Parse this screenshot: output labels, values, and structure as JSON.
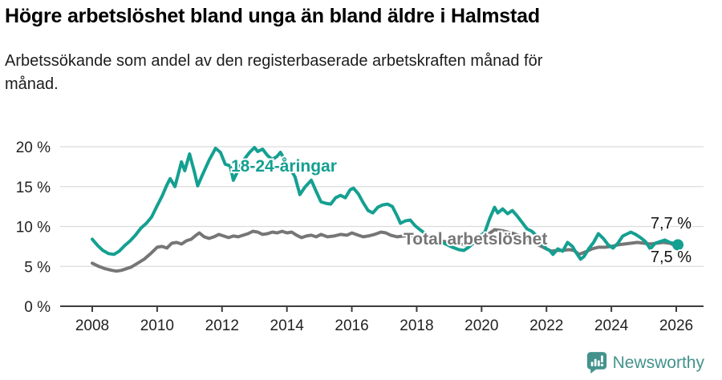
{
  "header": {
    "title": "Högre arbetslöshet bland unga än bland äldre i Halmstad",
    "subtitle": "Arbetssökande som andel av den registerbaserade arbetskraften månad för månad."
  },
  "footer": {
    "brand": "Newsworthy",
    "brand_color": "#43938c",
    "logo_icon": "bar-chart-speech-bubble-icon"
  },
  "chart_data": {
    "type": "line",
    "title": "Högre arbetslöshet bland unga än bland äldre i Halmstad",
    "subtitle": "Arbetssökande som andel av den registerbaserade arbetskraften månad för månad.",
    "unit": "%",
    "grid": true,
    "legend": "inline-labels",
    "x_axis": {
      "ticks": [
        2008,
        2010,
        2012,
        2014,
        2016,
        2018,
        2020,
        2022,
        2024,
        2026
      ],
      "tick_labels": [
        "2008",
        "2010",
        "2012",
        "2014",
        "2016",
        "2018",
        "2020",
        "2022",
        "2024",
        "2026"
      ],
      "range": [
        2007,
        2026.9
      ]
    },
    "y_axis": {
      "ticks": [
        0,
        5,
        10,
        15,
        20
      ],
      "tick_labels": [
        "0 %",
        "5 %",
        "10 %",
        "15 %",
        "20 %"
      ],
      "range": [
        0,
        21
      ]
    },
    "series": [
      {
        "name": "Total arbetslöshet",
        "color": "#767676",
        "end_label": "7,5 %",
        "latest_value": 7.5,
        "points": [
          [
            2008.0,
            5.4
          ],
          [
            2008.2,
            5.0
          ],
          [
            2008.4,
            4.7
          ],
          [
            2008.6,
            4.5
          ],
          [
            2008.75,
            4.4
          ],
          [
            2008.9,
            4.5
          ],
          [
            2009.05,
            4.7
          ],
          [
            2009.2,
            4.9
          ],
          [
            2009.4,
            5.4
          ],
          [
            2009.6,
            5.9
          ],
          [
            2009.8,
            6.6
          ],
          [
            2010.0,
            7.4
          ],
          [
            2010.15,
            7.5
          ],
          [
            2010.3,
            7.3
          ],
          [
            2010.45,
            7.9
          ],
          [
            2010.6,
            8.0
          ],
          [
            2010.75,
            7.8
          ],
          [
            2010.9,
            8.2
          ],
          [
            2011.05,
            8.4
          ],
          [
            2011.2,
            8.9
          ],
          [
            2011.3,
            9.2
          ],
          [
            2011.45,
            8.7
          ],
          [
            2011.6,
            8.5
          ],
          [
            2011.75,
            8.7
          ],
          [
            2011.9,
            9.0
          ],
          [
            2012.05,
            8.8
          ],
          [
            2012.2,
            8.6
          ],
          [
            2012.35,
            8.8
          ],
          [
            2012.5,
            8.7
          ],
          [
            2012.65,
            8.9
          ],
          [
            2012.8,
            9.1
          ],
          [
            2012.95,
            9.4
          ],
          [
            2013.1,
            9.3
          ],
          [
            2013.25,
            9.0
          ],
          [
            2013.4,
            9.1
          ],
          [
            2013.55,
            9.3
          ],
          [
            2013.7,
            9.2
          ],
          [
            2013.85,
            9.4
          ],
          [
            2014.0,
            9.2
          ],
          [
            2014.15,
            9.3
          ],
          [
            2014.3,
            8.9
          ],
          [
            2014.45,
            8.6
          ],
          [
            2014.6,
            8.8
          ],
          [
            2014.75,
            8.9
          ],
          [
            2014.9,
            8.7
          ],
          [
            2015.05,
            9.0
          ],
          [
            2015.25,
            8.7
          ],
          [
            2015.45,
            8.8
          ],
          [
            2015.65,
            9.0
          ],
          [
            2015.85,
            8.9
          ],
          [
            2016.0,
            9.2
          ],
          [
            2016.2,
            8.9
          ],
          [
            2016.35,
            8.7
          ],
          [
            2016.5,
            8.8
          ],
          [
            2016.7,
            9.0
          ],
          [
            2016.9,
            9.3
          ],
          [
            2017.05,
            9.2
          ],
          [
            2017.2,
            8.9
          ],
          [
            2017.4,
            8.7
          ],
          [
            2017.6,
            8.8
          ],
          [
            2017.8,
            8.9
          ],
          [
            2018.0,
            8.6
          ],
          [
            2018.25,
            8.3
          ],
          [
            2018.5,
            8.1
          ],
          [
            2018.75,
            8.2
          ],
          [
            2019.0,
            8.0
          ],
          [
            2019.25,
            7.8
          ],
          [
            2019.5,
            7.7
          ],
          [
            2019.75,
            7.9
          ],
          [
            2020.0,
            8.2
          ],
          [
            2020.2,
            9.0
          ],
          [
            2020.4,
            9.6
          ],
          [
            2020.6,
            9.5
          ],
          [
            2020.8,
            9.3
          ],
          [
            2021.0,
            9.1
          ],
          [
            2021.2,
            8.8
          ],
          [
            2021.4,
            8.4
          ],
          [
            2021.6,
            8.0
          ],
          [
            2021.8,
            7.6
          ],
          [
            2022.0,
            7.2
          ],
          [
            2022.15,
            6.9
          ],
          [
            2022.3,
            7.0
          ],
          [
            2022.5,
            7.0
          ],
          [
            2022.7,
            7.1
          ],
          [
            2022.85,
            7.0
          ],
          [
            2023.0,
            6.5
          ],
          [
            2023.2,
            6.8
          ],
          [
            2023.4,
            7.2
          ],
          [
            2023.6,
            7.4
          ],
          [
            2023.8,
            7.4
          ],
          [
            2024.0,
            7.5
          ],
          [
            2024.2,
            7.7
          ],
          [
            2024.4,
            7.8
          ],
          [
            2024.6,
            7.9
          ],
          [
            2024.8,
            8.0
          ],
          [
            2025.0,
            7.9
          ],
          [
            2025.2,
            7.8
          ],
          [
            2025.4,
            7.9
          ],
          [
            2025.6,
            8.0
          ],
          [
            2025.8,
            7.9
          ],
          [
            2026.05,
            7.5
          ]
        ]
      },
      {
        "name": "18-24-åringar",
        "color": "#14a091",
        "end_label": "7,7 %",
        "latest_value": 7.7,
        "points": [
          [
            2008.0,
            8.4
          ],
          [
            2008.17,
            7.6
          ],
          [
            2008.33,
            7.0
          ],
          [
            2008.5,
            6.6
          ],
          [
            2008.67,
            6.5
          ],
          [
            2008.83,
            6.9
          ],
          [
            2009.0,
            7.6
          ],
          [
            2009.17,
            8.2
          ],
          [
            2009.33,
            8.9
          ],
          [
            2009.5,
            9.8
          ],
          [
            2009.67,
            10.4
          ],
          [
            2009.83,
            11.2
          ],
          [
            2010.0,
            12.6
          ],
          [
            2010.15,
            13.8
          ],
          [
            2010.3,
            15.2
          ],
          [
            2010.4,
            16.0
          ],
          [
            2010.55,
            15.0
          ],
          [
            2010.75,
            18.1
          ],
          [
            2010.85,
            17.0
          ],
          [
            2011.0,
            19.1
          ],
          [
            2011.15,
            16.8
          ],
          [
            2011.25,
            15.1
          ],
          [
            2011.4,
            16.5
          ],
          [
            2011.6,
            18.3
          ],
          [
            2011.8,
            19.8
          ],
          [
            2011.95,
            19.3
          ],
          [
            2012.1,
            17.8
          ],
          [
            2012.25,
            17.6
          ],
          [
            2012.35,
            15.8
          ],
          [
            2012.55,
            17.5
          ],
          [
            2012.7,
            18.5
          ],
          [
            2012.85,
            19.3
          ],
          [
            2013.0,
            19.9
          ],
          [
            2013.1,
            19.4
          ],
          [
            2013.25,
            19.7
          ],
          [
            2013.4,
            18.9
          ],
          [
            2013.55,
            18.4
          ],
          [
            2013.7,
            18.8
          ],
          [
            2013.8,
            19.3
          ],
          [
            2013.95,
            18.2
          ],
          [
            2014.1,
            17.3
          ],
          [
            2014.25,
            16.2
          ],
          [
            2014.4,
            14.0
          ],
          [
            2014.55,
            14.9
          ],
          [
            2014.75,
            15.8
          ],
          [
            2014.9,
            14.4
          ],
          [
            2015.05,
            13.1
          ],
          [
            2015.2,
            12.9
          ],
          [
            2015.35,
            12.8
          ],
          [
            2015.5,
            13.6
          ],
          [
            2015.65,
            13.9
          ],
          [
            2015.8,
            13.6
          ],
          [
            2015.95,
            14.6
          ],
          [
            2016.05,
            14.8
          ],
          [
            2016.2,
            14.1
          ],
          [
            2016.35,
            13.0
          ],
          [
            2016.5,
            12.0
          ],
          [
            2016.65,
            11.7
          ],
          [
            2016.8,
            12.4
          ],
          [
            2016.95,
            12.7
          ],
          [
            2017.1,
            12.8
          ],
          [
            2017.25,
            12.5
          ],
          [
            2017.4,
            11.3
          ],
          [
            2017.5,
            10.4
          ],
          [
            2017.65,
            10.7
          ],
          [
            2017.8,
            10.8
          ],
          [
            2017.95,
            10.1
          ],
          [
            2018.1,
            9.6
          ],
          [
            2018.3,
            9.0
          ],
          [
            2018.5,
            8.5
          ],
          [
            2018.7,
            8.1
          ],
          [
            2018.9,
            7.8
          ],
          [
            2019.1,
            7.4
          ],
          [
            2019.3,
            7.1
          ],
          [
            2019.45,
            7.0
          ],
          [
            2019.6,
            7.4
          ],
          [
            2019.8,
            8.1
          ],
          [
            2019.95,
            8.8
          ],
          [
            2020.1,
            9.3
          ],
          [
            2020.25,
            11.0
          ],
          [
            2020.4,
            12.4
          ],
          [
            2020.5,
            11.7
          ],
          [
            2020.65,
            12.2
          ],
          [
            2020.8,
            11.6
          ],
          [
            2020.95,
            12.0
          ],
          [
            2021.1,
            11.3
          ],
          [
            2021.25,
            10.5
          ],
          [
            2021.4,
            9.7
          ],
          [
            2021.55,
            9.4
          ],
          [
            2021.7,
            8.8
          ],
          [
            2021.85,
            7.9
          ],
          [
            2022.0,
            7.2
          ],
          [
            2022.1,
            7.0
          ],
          [
            2022.2,
            6.5
          ],
          [
            2022.35,
            7.2
          ],
          [
            2022.5,
            6.9
          ],
          [
            2022.65,
            8.0
          ],
          [
            2022.8,
            7.5
          ],
          [
            2022.9,
            6.8
          ],
          [
            2023.05,
            5.9
          ],
          [
            2023.15,
            6.2
          ],
          [
            2023.3,
            7.2
          ],
          [
            2023.45,
            8.0
          ],
          [
            2023.6,
            9.1
          ],
          [
            2023.75,
            8.5
          ],
          [
            2023.9,
            7.7
          ],
          [
            2024.05,
            7.3
          ],
          [
            2024.2,
            7.9
          ],
          [
            2024.35,
            8.8
          ],
          [
            2024.5,
            9.1
          ],
          [
            2024.6,
            9.3
          ],
          [
            2024.75,
            9.0
          ],
          [
            2024.9,
            8.6
          ],
          [
            2025.05,
            8.1
          ],
          [
            2025.2,
            7.2
          ],
          [
            2025.35,
            7.9
          ],
          [
            2025.5,
            8.1
          ],
          [
            2025.65,
            8.3
          ],
          [
            2025.8,
            8.0
          ],
          [
            2025.92,
            7.9
          ],
          [
            2026.05,
            7.7
          ]
        ]
      }
    ]
  }
}
